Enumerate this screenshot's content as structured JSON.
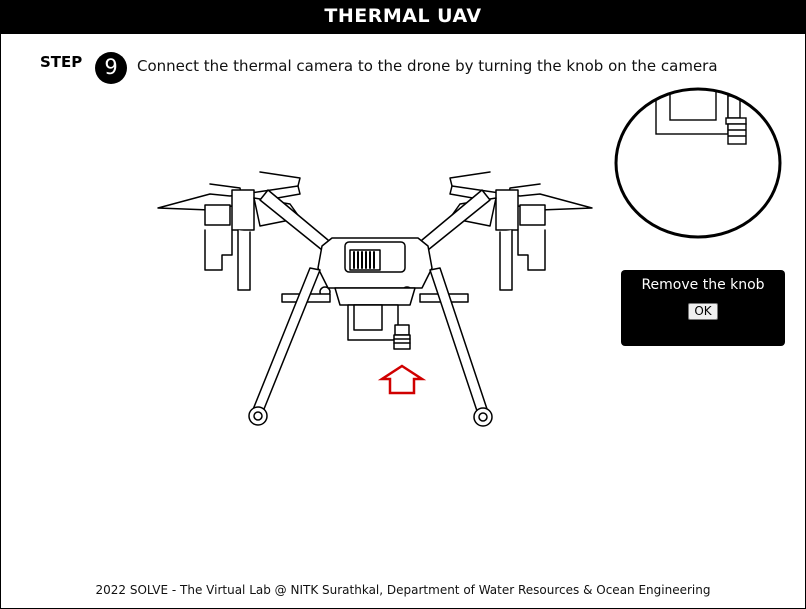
{
  "header": {
    "title": "THERMAL UAV"
  },
  "step": {
    "label": "STEP",
    "number": "9",
    "instruction": "Connect the thermal camera to the drone by turning the knob on the camera"
  },
  "popup": {
    "message": "Remove the knob",
    "ok_label": "OK"
  },
  "footer": {
    "text": "2022 SOLVE - The Virtual Lab @ NITK Surathkal, Department of Water Resources & Ocean Engineering"
  },
  "colors": {
    "header_bg": "#000000",
    "arrow": "#d00000",
    "popup_bg": "#000000"
  },
  "icons": {
    "pointer": "up-arrow-icon"
  }
}
